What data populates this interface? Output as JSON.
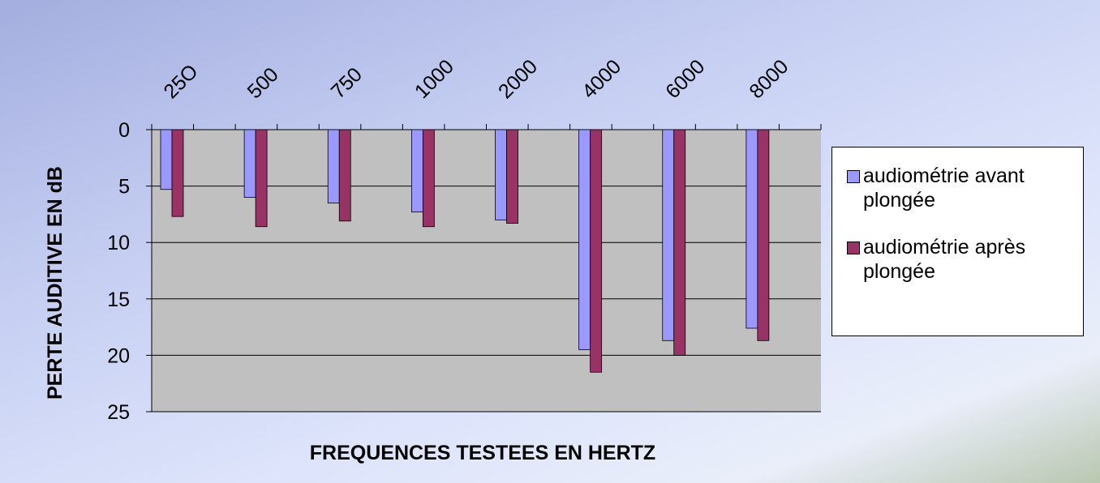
{
  "chart_data": {
    "type": "bar",
    "x_label": "FREQUENCES TESTEES EN HERTZ",
    "y_label": "PERTE  AUDITIVE  EN dB",
    "categories": [
      "25O",
      "500",
      "750",
      "1000",
      "2000",
      "4000",
      "6000",
      "8000"
    ],
    "series": [
      {
        "name": "audiométrie avant plongée",
        "color": "#9999ff",
        "values": [
          5.3,
          6.0,
          6.5,
          7.3,
          8.0,
          19.5,
          18.7,
          17.6
        ]
      },
      {
        "name": "audiométrie après plongée",
        "color": "#993366",
        "values": [
          7.7,
          8.6,
          8.1,
          8.6,
          8.3,
          21.5,
          20.0,
          18.7
        ]
      }
    ],
    "ylim": [
      0,
      25
    ],
    "yticks": [
      0,
      5,
      10,
      15,
      20,
      25
    ],
    "y_inverted": true,
    "grid": true,
    "legend": "right"
  }
}
